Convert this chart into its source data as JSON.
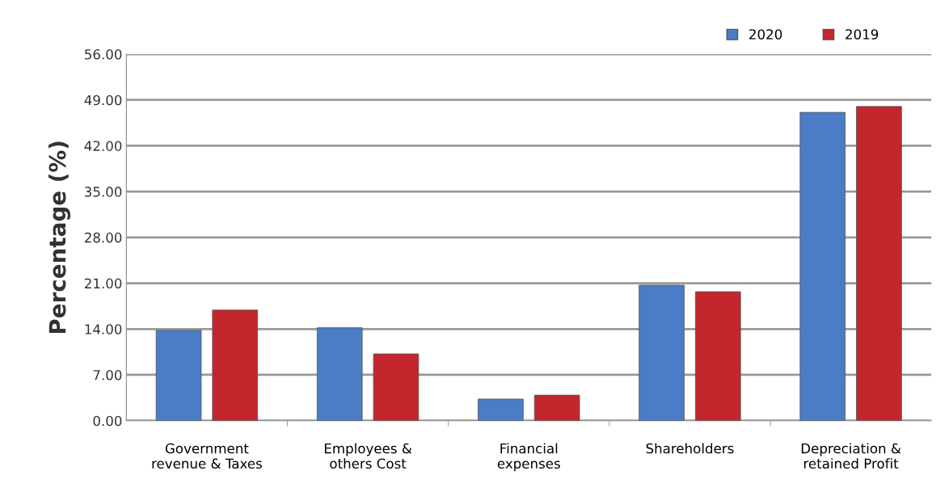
{
  "chart_data": {
    "type": "bar",
    "ylabel": "Percentage (%)",
    "categories": [
      "Government\nrevenue & Taxes",
      "Employees &\nothers Cost",
      "Financial\nexpenses",
      "Shareholders",
      "Depreciation &\nretained Profit"
    ],
    "series": [
      {
        "name": "2020",
        "color": "#4a7cc8",
        "values": [
          13.8,
          14.2,
          3.3,
          20.7,
          47.1
        ]
      },
      {
        "name": "2019",
        "color": "#c3262d",
        "values": [
          16.9,
          10.2,
          3.9,
          19.7,
          48.0
        ]
      }
    ],
    "ylim": [
      0,
      56
    ],
    "yticks": [
      {
        "value": 0,
        "label": "0.00"
      },
      {
        "value": 7,
        "label": "7.00"
      },
      {
        "value": 14,
        "label": "14.00"
      },
      {
        "value": 21,
        "label": "21.00"
      },
      {
        "value": 28,
        "label": "28.00"
      },
      {
        "value": 35,
        "label": "35.00"
      },
      {
        "value": 42,
        "label": "42.00"
      },
      {
        "value": 49,
        "label": "49.00"
      },
      {
        "value": 56,
        "label": "56.00"
      }
    ],
    "grid": "y",
    "legend": "top right"
  }
}
